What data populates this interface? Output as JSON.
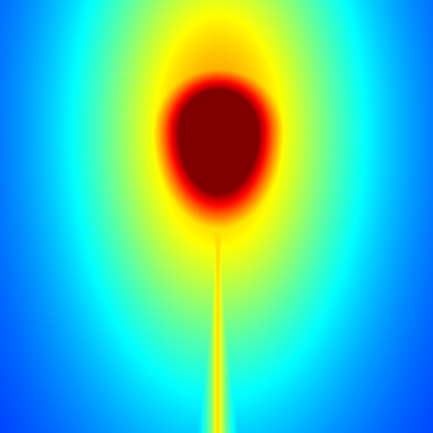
{
  "image": {
    "kind": "scalar-field-heatmap",
    "colormap": "jet",
    "colormap_stops": [
      "#00007f",
      "#0000ff",
      "#007fff",
      "#00ffff",
      "#7fff7f",
      "#ffff00",
      "#ff7f00",
      "#ff0000",
      "#7f0000"
    ],
    "background_color": "#0034ff",
    "saturated_color": "#7f0000",
    "shape": "teardrop with thin vertical tail",
    "labels_present": false
  }
}
